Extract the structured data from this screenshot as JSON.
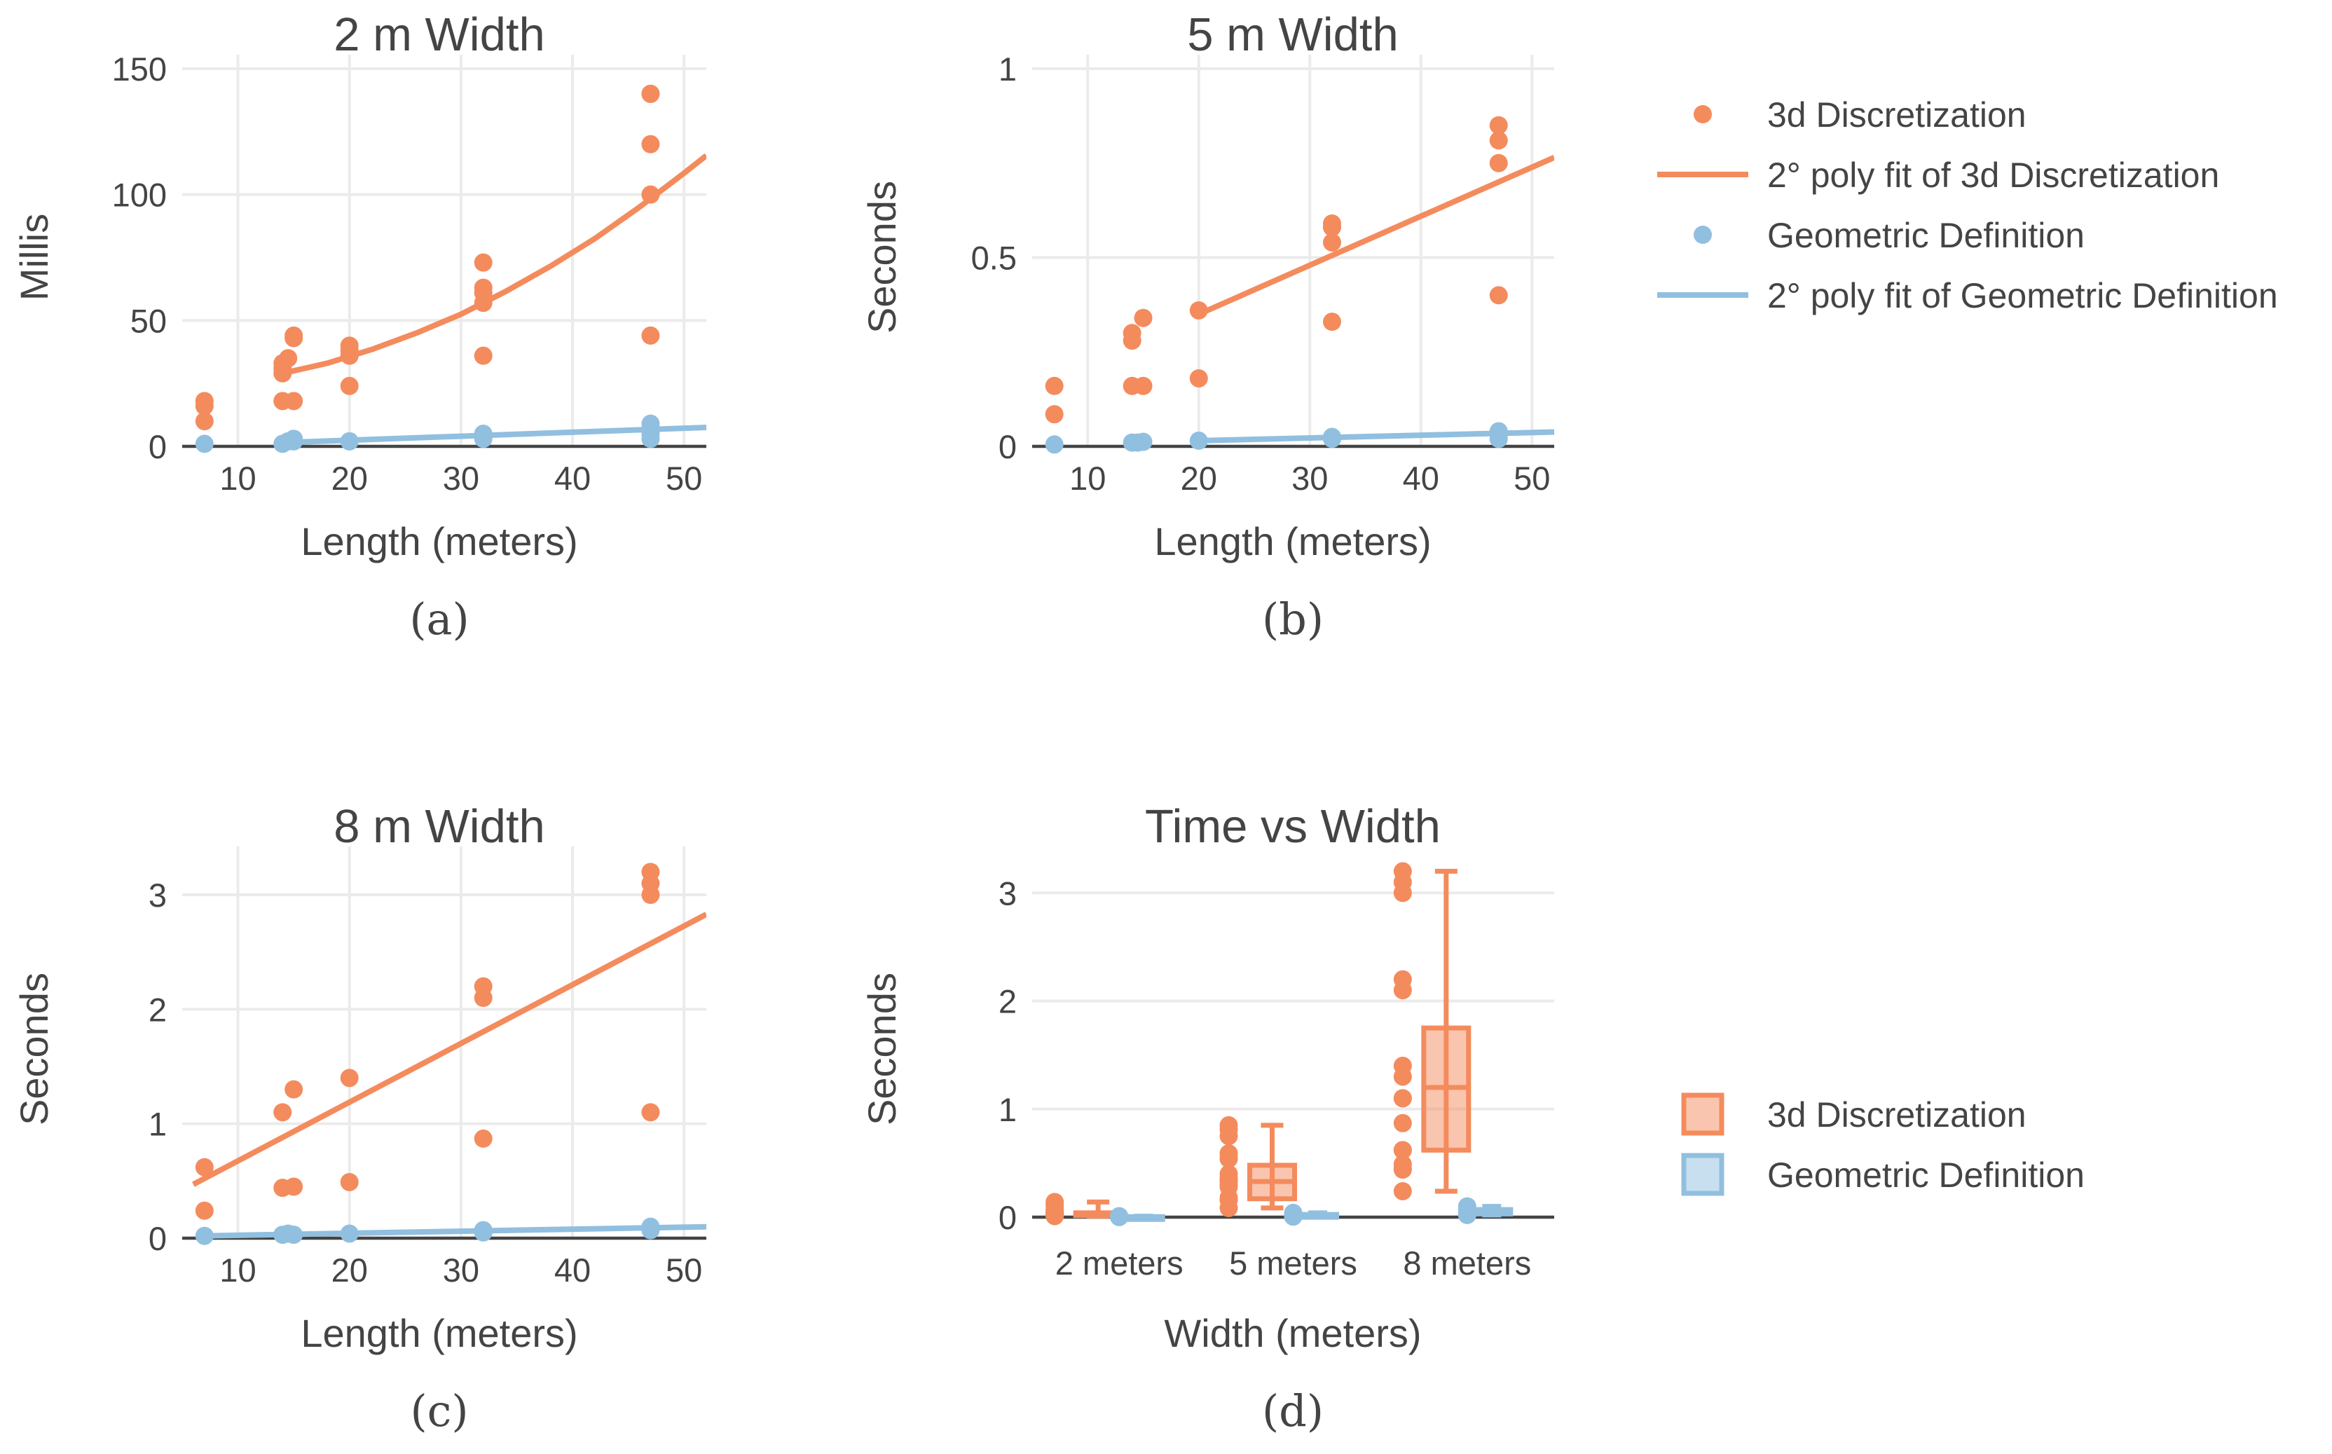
{
  "colors": {
    "orange": "#f48b5d",
    "blue": "#91bfdf",
    "text": "#444444"
  },
  "legend_top": {
    "items": [
      {
        "label": "3d Discretization",
        "kind": "marker",
        "series": "orange"
      },
      {
        "label": "2° poly fit of 3d Discretization",
        "kind": "line",
        "series": "orange"
      },
      {
        "label": "Geometric Definition",
        "kind": "marker",
        "series": "blue"
      },
      {
        "label": "2° poly fit of Geometric Definition",
        "kind": "line",
        "series": "blue"
      }
    ]
  },
  "legend_bottom": {
    "items": [
      {
        "label": "3d Discretization",
        "kind": "box",
        "series": "orange"
      },
      {
        "label": "Geometric Definition",
        "kind": "box",
        "series": "blue"
      }
    ]
  },
  "chart_data": [
    {
      "type": "scatter",
      "id": "a",
      "caption": "(a)",
      "title": "2 m Width",
      "xlabel": "Length (meters)",
      "ylabel": "Millis",
      "xlim": [
        5,
        52
      ],
      "ylim": [
        0,
        150
      ],
      "xticks": [
        10,
        20,
        30,
        40,
        50
      ],
      "yticks": [
        0,
        50,
        100,
        150
      ],
      "series": [
        {
          "name": "3d Discretization",
          "color": "orange",
          "x": [
            7,
            7,
            7,
            14,
            14,
            14,
            14,
            14.5,
            15,
            15,
            15,
            20,
            20,
            20,
            20,
            32,
            32,
            32,
            32,
            32,
            47,
            47,
            47,
            47,
            47
          ],
          "y": [
            10,
            16,
            18,
            18,
            29,
            31,
            33,
            35,
            43,
            44,
            18,
            24,
            36,
            38,
            40,
            36,
            57,
            61,
            63,
            73,
            44,
            100,
            120,
            140,
            140
          ]
        },
        {
          "name": "Geometric Definition",
          "color": "blue",
          "x": [
            7,
            14,
            14.5,
            15,
            15,
            20,
            20,
            32,
            32,
            32,
            47,
            47,
            47,
            47
          ],
          "y": [
            1,
            1,
            2,
            2,
            3,
            2,
            2,
            3,
            4,
            5,
            3,
            5,
            7,
            9
          ]
        },
        {
          "name": "2° poly fit of 3d Discretization",
          "color": "orange",
          "fit": "line",
          "x": [
            14,
            18,
            22,
            26,
            30,
            34,
            38,
            42,
            46,
            50,
            52
          ],
          "y": [
            29,
            33,
            38.5,
            45,
            52.5,
            61.5,
            71.5,
            82.5,
            95,
            108.5,
            115.5
          ]
        },
        {
          "name": "2° poly fit of Geometric Definition",
          "color": "blue",
          "fit": "line",
          "x": [
            14,
            52
          ],
          "y": [
            1.5,
            7.5
          ]
        }
      ]
    },
    {
      "type": "scatter",
      "id": "b",
      "caption": "(b)",
      "title": "5 m Width",
      "xlabel": "Length (meters)",
      "ylabel": "Seconds",
      "xlim": [
        5,
        52
      ],
      "ylim": [
        0,
        1
      ],
      "yticklabels": [
        "0",
        "0.5",
        "1"
      ],
      "xticks": [
        10,
        20,
        30,
        40,
        50
      ],
      "yticks": [
        0,
        0.5,
        1
      ],
      "series": [
        {
          "name": "3d Discretization",
          "color": "orange",
          "x": [
            7,
            7,
            14,
            14,
            14,
            15,
            15,
            20,
            20,
            32,
            32,
            32,
            32,
            47,
            47,
            47,
            47
          ],
          "y": [
            0.085,
            0.16,
            0.16,
            0.28,
            0.3,
            0.16,
            0.34,
            0.18,
            0.36,
            0.33,
            0.54,
            0.58,
            0.59,
            0.4,
            0.75,
            0.81,
            0.85
          ]
        },
        {
          "name": "Geometric Definition",
          "color": "blue",
          "x": [
            7,
            14,
            14.5,
            15,
            20,
            32,
            32,
            47,
            47,
            47
          ],
          "y": [
            0.005,
            0.01,
            0.01,
            0.012,
            0.015,
            0.02,
            0.025,
            0.02,
            0.03,
            0.04
          ]
        },
        {
          "name": "2° poly fit of 3d Discretization",
          "color": "orange",
          "fit": "line",
          "x": [
            20,
            52
          ],
          "y": [
            0.35,
            0.765
          ]
        },
        {
          "name": "2° poly fit of Geometric Definition",
          "color": "blue",
          "fit": "line",
          "x": [
            20,
            52
          ],
          "y": [
            0.015,
            0.038
          ]
        }
      ]
    },
    {
      "type": "scatter",
      "id": "c",
      "caption": "(c)",
      "title": "8 m Width",
      "xlabel": "Length (meters)",
      "ylabel": "Seconds",
      "xlim": [
        5,
        52
      ],
      "ylim": [
        0,
        3.3
      ],
      "xticks": [
        10,
        20,
        30,
        40,
        50
      ],
      "yticks": [
        0,
        1,
        2,
        3
      ],
      "series": [
        {
          "name": "3d Discretization",
          "color": "orange",
          "x": [
            7,
            7,
            14,
            14,
            15,
            15,
            20,
            20,
            32,
            32,
            32,
            47,
            47,
            47,
            47
          ],
          "y": [
            0.24,
            0.62,
            0.44,
            1.1,
            0.45,
            1.3,
            0.49,
            1.4,
            0.87,
            2.1,
            2.2,
            1.1,
            3.0,
            3.1,
            3.2
          ]
        },
        {
          "name": "Geometric Definition",
          "color": "blue",
          "x": [
            7,
            14,
            14.5,
            15,
            20,
            32,
            32,
            47,
            47
          ],
          "y": [
            0.02,
            0.03,
            0.04,
            0.03,
            0.04,
            0.05,
            0.07,
            0.07,
            0.1
          ]
        },
        {
          "name": "2° poly fit of 3d Discretization",
          "color": "orange",
          "fit": "line",
          "x": [
            6,
            52
          ],
          "y": [
            0.47,
            2.83
          ]
        },
        {
          "name": "2° poly fit of Geometric Definition",
          "color": "blue",
          "fit": "line",
          "x": [
            7,
            52
          ],
          "y": [
            0.02,
            0.1
          ]
        }
      ]
    },
    {
      "type": "box",
      "id": "d",
      "caption": "(d)",
      "title": "Time vs Width",
      "xlabel": "Width (meters)",
      "ylabel": "Seconds",
      "ylim": [
        0,
        3.3
      ],
      "yticks": [
        0,
        1,
        2,
        3
      ],
      "categories": [
        "2 meters",
        "5 meters",
        "8 meters"
      ],
      "series": [
        {
          "name": "3d Discretization",
          "color": "orange",
          "boxes": [
            {
              "category": "2 meters",
              "min": 0.01,
              "q1": 0.018,
              "median": 0.03,
              "q3": 0.04,
              "max": 0.14,
              "points": [
                0.01,
                0.016,
                0.018,
                0.024,
                0.029,
                0.031,
                0.033,
                0.036,
                0.04,
                0.044,
                0.057,
                0.061,
                0.073,
                0.1,
                0.12,
                0.14
              ]
            },
            {
              "category": "5 meters",
              "min": 0.085,
              "q1": 0.17,
              "median": 0.33,
              "q3": 0.48,
              "max": 0.85,
              "points": [
                0.085,
                0.16,
                0.16,
                0.18,
                0.28,
                0.3,
                0.33,
                0.34,
                0.36,
                0.4,
                0.54,
                0.58,
                0.59,
                0.75,
                0.81,
                0.85
              ]
            },
            {
              "category": "8 meters",
              "min": 0.24,
              "q1": 0.62,
              "median": 1.2,
              "q3": 1.75,
              "max": 3.2,
              "points": [
                0.24,
                0.44,
                0.45,
                0.49,
                0.62,
                0.62,
                0.87,
                1.1,
                1.1,
                1.3,
                1.4,
                2.1,
                2.2,
                3.0,
                3.1,
                3.2
              ]
            }
          ]
        },
        {
          "name": "Geometric Definition",
          "color": "blue",
          "boxes": [
            {
              "category": "2 meters",
              "min": 0.001,
              "q1": 0.002,
              "median": 0.003,
              "q3": 0.005,
              "max": 0.009,
              "points": [
                0.001,
                0.002,
                0.003,
                0.005,
                0.009
              ]
            },
            {
              "category": "5 meters",
              "min": 0.005,
              "q1": 0.01,
              "median": 0.015,
              "q3": 0.025,
              "max": 0.04,
              "points": [
                0.005,
                0.01,
                0.015,
                0.025,
                0.04
              ]
            },
            {
              "category": "8 meters",
              "min": 0.02,
              "q1": 0.03,
              "median": 0.04,
              "q3": 0.07,
              "max": 0.1,
              "points": [
                0.02,
                0.03,
                0.05,
                0.07,
                0.1
              ]
            }
          ]
        }
      ]
    }
  ]
}
